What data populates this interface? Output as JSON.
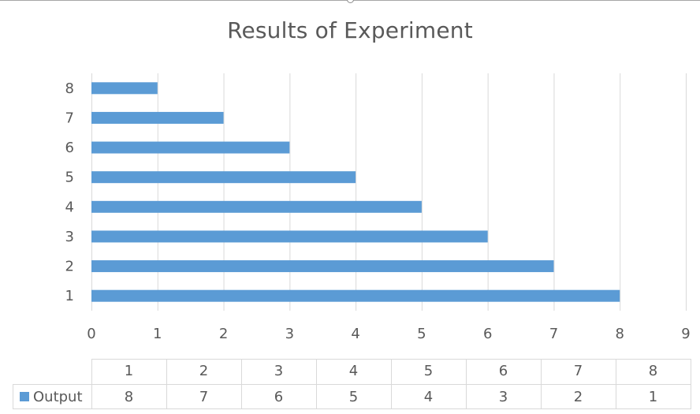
{
  "chart_data": {
    "type": "bar",
    "orientation": "horizontal",
    "title": "Results of Experiment",
    "categories": [
      "1",
      "2",
      "3",
      "4",
      "5",
      "6",
      "7",
      "8"
    ],
    "series": [
      {
        "name": "Output",
        "values": [
          8,
          7,
          6,
          5,
          4,
          3,
          2,
          1
        ],
        "color": "#5b9bd5"
      }
    ],
    "xlim": [
      0,
      9
    ],
    "x_ticks": [
      "0",
      "1",
      "2",
      "3",
      "4",
      "5",
      "6",
      "7",
      "8",
      "9"
    ],
    "grid": true,
    "data_table": true,
    "colors": {
      "gridline": "#d9d9d9",
      "text": "#595959",
      "table_border": "#d9d9d9"
    }
  }
}
